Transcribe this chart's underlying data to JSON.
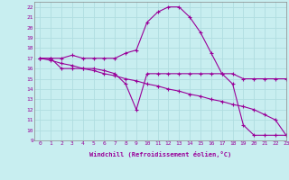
{
  "xlabel": "Windchill (Refroidissement éolien,°C)",
  "xlim": [
    -0.5,
    23
  ],
  "ylim": [
    9,
    22.5
  ],
  "xticks": [
    0,
    1,
    2,
    3,
    4,
    5,
    6,
    7,
    8,
    9,
    10,
    11,
    12,
    13,
    14,
    15,
    16,
    17,
    18,
    19,
    20,
    21,
    22,
    23
  ],
  "yticks": [
    9,
    10,
    11,
    12,
    13,
    14,
    15,
    16,
    17,
    18,
    19,
    20,
    21,
    22
  ],
  "background_color": "#c8eef0",
  "grid_color": "#b0dde0",
  "line_color": "#990099",
  "line1_x": [
    0,
    1,
    2,
    3,
    4,
    5,
    6,
    7,
    8,
    9,
    10,
    11,
    12,
    13,
    14,
    15,
    16,
    17,
    18,
    19,
    20,
    21,
    22,
    23
  ],
  "line1_y": [
    17.0,
    17.0,
    17.0,
    17.3,
    17.0,
    17.0,
    17.0,
    17.0,
    17.5,
    17.8,
    20.5,
    21.5,
    22.0,
    22.0,
    21.0,
    19.5,
    17.5,
    15.5,
    14.5,
    10.5,
    9.5,
    9.5,
    9.5,
    9.5
  ],
  "line2_x": [
    0,
    1,
    2,
    3,
    4,
    5,
    6,
    7,
    8,
    9,
    10,
    11,
    12,
    13,
    14,
    15,
    16,
    17,
    18,
    19,
    20,
    21,
    22,
    23
  ],
  "line2_y": [
    17.0,
    17.0,
    16.0,
    16.0,
    16.0,
    16.0,
    15.8,
    15.5,
    14.5,
    12.0,
    15.5,
    15.5,
    15.5,
    15.5,
    15.5,
    15.5,
    15.5,
    15.5,
    15.5,
    15.0,
    15.0,
    15.0,
    15.0,
    15.0
  ],
  "line3_x": [
    0,
    1,
    2,
    3,
    4,
    5,
    6,
    7,
    8,
    9,
    10,
    11,
    12,
    13,
    14,
    15,
    16,
    17,
    18,
    19,
    20,
    21,
    22,
    23
  ],
  "line3_y": [
    17.0,
    16.8,
    16.5,
    16.3,
    16.0,
    15.8,
    15.5,
    15.3,
    15.0,
    14.8,
    14.5,
    14.3,
    14.0,
    13.8,
    13.5,
    13.3,
    13.0,
    12.8,
    12.5,
    12.3,
    12.0,
    11.5,
    11.0,
    9.5
  ]
}
